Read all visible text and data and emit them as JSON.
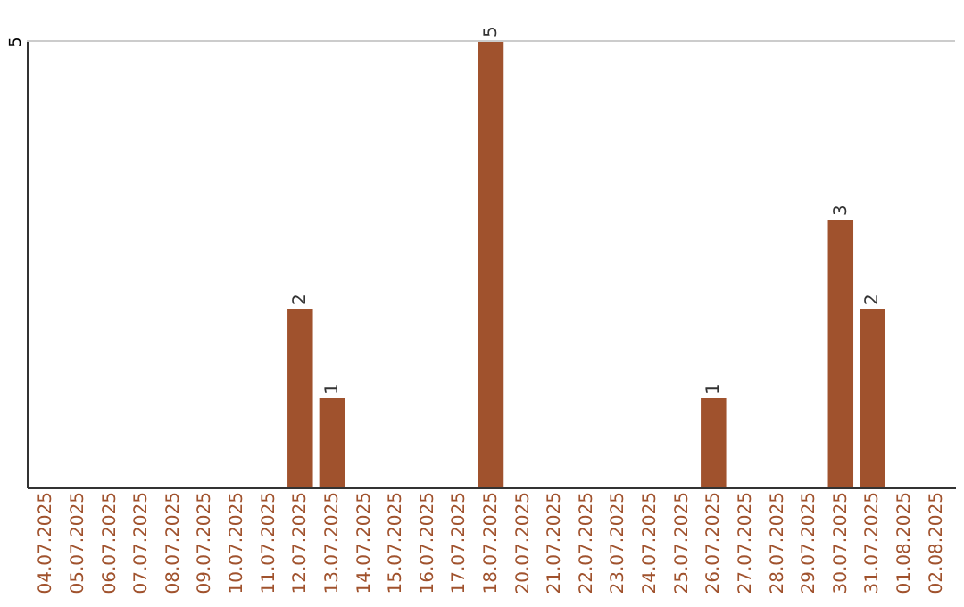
{
  "chart_data": {
    "type": "bar",
    "categories": [
      "04.07.2025",
      "05.07.2025",
      "06.07.2025",
      "07.07.2025",
      "08.07.2025",
      "09.07.2025",
      "10.07.2025",
      "11.07.2025",
      "12.07.2025",
      "13.07.2025",
      "14.07.2025",
      "15.07.2025",
      "16.07.2025",
      "17.07.2025",
      "18.07.2025",
      "20.07.2025",
      "21.07.2025",
      "22.07.2025",
      "23.07.2025",
      "24.07.2025",
      "25.07.2025",
      "26.07.2025",
      "27.07.2025",
      "28.07.2025",
      "29.07.2025",
      "30.07.2025",
      "31.07.2025",
      "01.08.2025",
      "02.08.2025"
    ],
    "values": [
      0,
      0,
      0,
      0,
      0,
      0,
      0,
      0,
      2,
      1,
      0,
      0,
      0,
      0,
      5,
      0,
      0,
      0,
      0,
      0,
      0,
      1,
      0,
      0,
      0,
      3,
      2,
      0,
      0
    ],
    "value_labels": [
      null,
      null,
      null,
      null,
      null,
      null,
      null,
      null,
      "2",
      "1",
      null,
      null,
      null,
      null,
      "5",
      null,
      null,
      null,
      null,
      null,
      null,
      "1",
      null,
      null,
      null,
      "3",
      "2",
      null,
      null
    ],
    "color": "#a0522d",
    "ylim": [
      0,
      5
    ],
    "yticks": [
      5
    ],
    "ref_lines": [
      {
        "axis": "y",
        "value": 5,
        "color": "#cccccc"
      }
    ]
  }
}
